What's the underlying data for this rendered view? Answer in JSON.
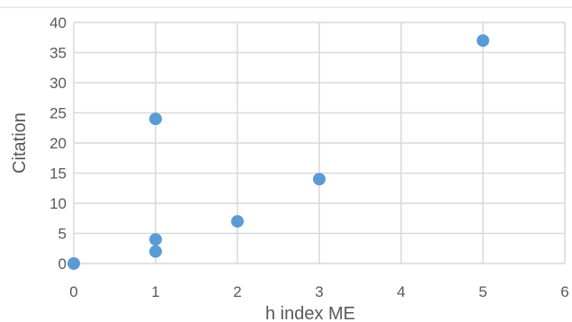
{
  "chart_data": {
    "type": "scatter",
    "title": "",
    "xlabel": "h index ME",
    "ylabel": "Citation",
    "xlim": [
      0,
      6
    ],
    "ylim": [
      0,
      40
    ],
    "x_ticks": [
      "0",
      "1",
      "2",
      "3",
      "4",
      "5",
      "6"
    ],
    "y_ticks": [
      "0",
      "5",
      "10",
      "15",
      "20",
      "25",
      "30",
      "35",
      "40"
    ],
    "grid": true,
    "legend": "none",
    "series": [
      {
        "color": "#5b9bd5",
        "points": [
          {
            "x": 0,
            "y": 0
          },
          {
            "x": 1,
            "y": 24
          },
          {
            "x": 1,
            "y": 4
          },
          {
            "x": 1,
            "y": 2
          },
          {
            "x": 2,
            "y": 7
          },
          {
            "x": 3,
            "y": 14
          },
          {
            "x": 5,
            "y": 37
          }
        ]
      }
    ]
  }
}
